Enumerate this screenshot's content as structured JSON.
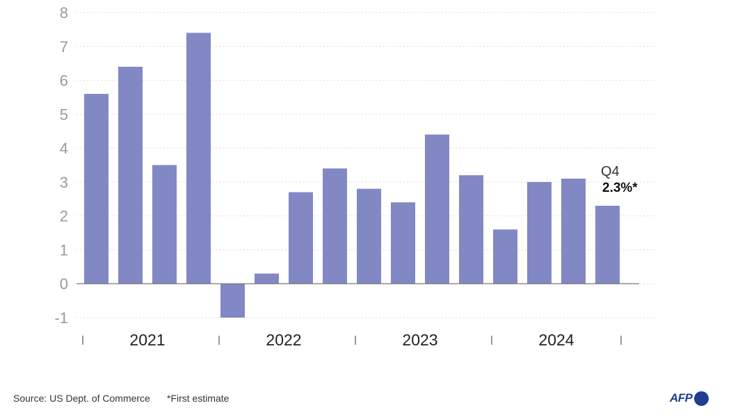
{
  "chart_data": {
    "type": "bar",
    "categories": [
      "2021 Q1",
      "2021 Q2",
      "2021 Q3",
      "2021 Q4",
      "2022 Q1",
      "2022 Q2",
      "2022 Q3",
      "2022 Q4",
      "2023 Q1",
      "2023 Q2",
      "2023 Q3",
      "2023 Q4",
      "2024 Q1",
      "2024 Q2",
      "2024 Q3",
      "2024 Q4"
    ],
    "values": [
      5.6,
      6.4,
      3.5,
      7.4,
      -1.0,
      0.3,
      2.7,
      3.4,
      2.8,
      2.4,
      4.4,
      3.2,
      1.6,
      3.0,
      3.1,
      2.3
    ],
    "ylim": [
      -1,
      8
    ],
    "yticks": [
      -1,
      0,
      1,
      2,
      3,
      4,
      5,
      6,
      7,
      8
    ],
    "ytick_labels": [
      "-1",
      "0",
      "1",
      "2",
      "3",
      "4",
      "5",
      "6",
      "7",
      "8"
    ],
    "year_labels": [
      "2021",
      "2022",
      "2023",
      "2024"
    ],
    "bar_color": "#8288c4",
    "grid": true,
    "annotation": {
      "quarter": "Q4",
      "value": "2.3%*"
    }
  },
  "footer": {
    "source": "Source: US Dept. of Commerce",
    "note": "*First estimate"
  },
  "logo": {
    "text": "AFP",
    "color": "#1f3e8f"
  }
}
